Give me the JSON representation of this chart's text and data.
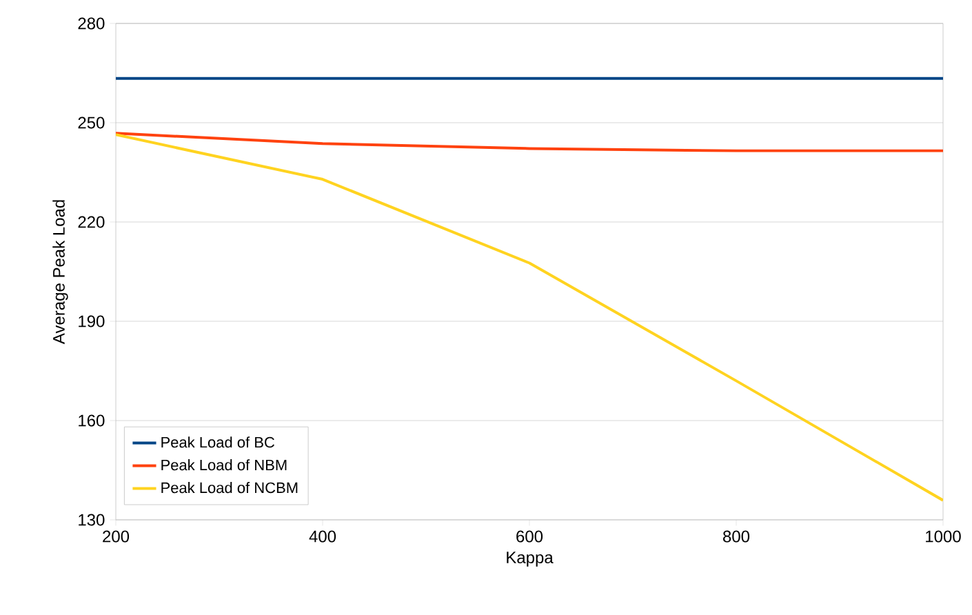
{
  "chart_data": {
    "type": "line",
    "xlabel": "Kappa",
    "ylabel": "Average Peak Load",
    "x": [
      200,
      400,
      600,
      800,
      1000
    ],
    "series": [
      {
        "name": "Peak Load of BC",
        "color": "#004586",
        "values": [
          263.4,
          263.4,
          263.4,
          263.4,
          263.4
        ]
      },
      {
        "name": "Peak Load of NBM",
        "color": "#ff420e",
        "values": [
          246.8,
          243.7,
          242.2,
          241.5,
          241.5
        ]
      },
      {
        "name": "Peak Load of NCBM",
        "color": "#ffd320",
        "values": [
          246.4,
          232.9,
          207.6,
          172.0,
          135.9
        ]
      }
    ],
    "xlim": [
      200,
      1000
    ],
    "ylim": [
      130,
      280
    ],
    "xticks": [
      200,
      400,
      600,
      800,
      1000
    ],
    "yticks": [
      130,
      160,
      190,
      220,
      250,
      280
    ],
    "grid": "y",
    "legend": "bottom left",
    "marker": "none",
    "line_style": "solid"
  }
}
